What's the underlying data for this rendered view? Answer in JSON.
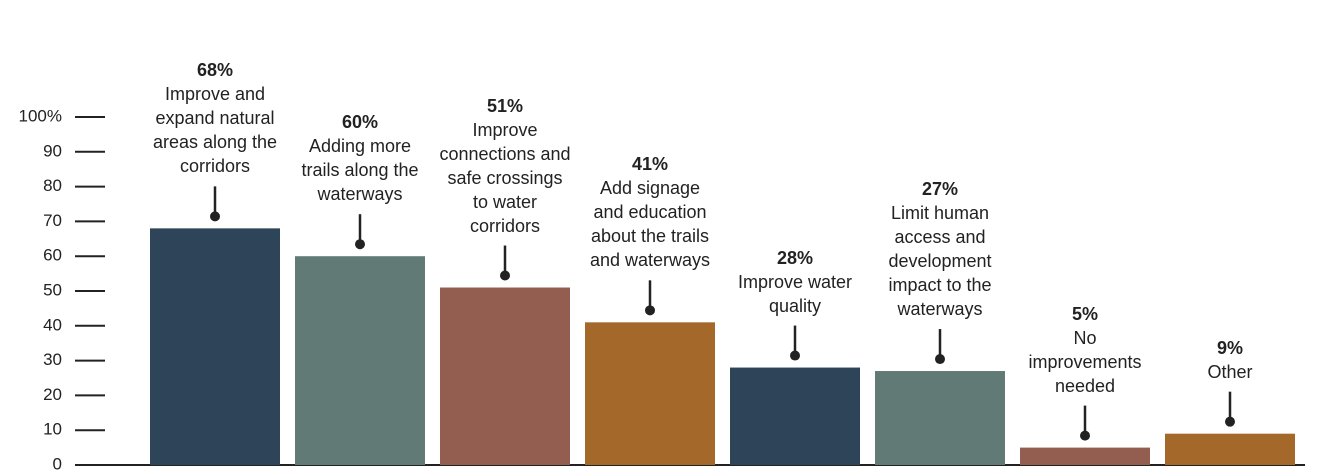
{
  "chart_data": {
    "type": "bar",
    "categories": [
      "Improve and expand natural areas along the corridors",
      "Adding more trails along the waterways",
      "Improve connections and safe crossings to water corridors",
      "Add signage and education about the trails and waterways",
      "Improve water quality",
      "Limit human access and development impact to the waterways",
      "No improvements needed",
      "Other"
    ],
    "values": [
      68,
      60,
      51,
      41,
      28,
      27,
      5,
      9
    ],
    "value_labels": [
      "68%",
      "60%",
      "51%",
      "41%",
      "28%",
      "27%",
      "5%",
      "9%"
    ],
    "colors": [
      "#2e4459",
      "#617a75",
      "#935e50",
      "#a4692a",
      "#2e4459",
      "#617a75",
      "#935e50",
      "#a4692a"
    ],
    "ylim": [
      0,
      100
    ],
    "yticks": [
      0,
      10,
      20,
      30,
      40,
      50,
      60,
      70,
      80,
      90,
      {
        "value": 100,
        "label": "100%"
      }
    ]
  }
}
